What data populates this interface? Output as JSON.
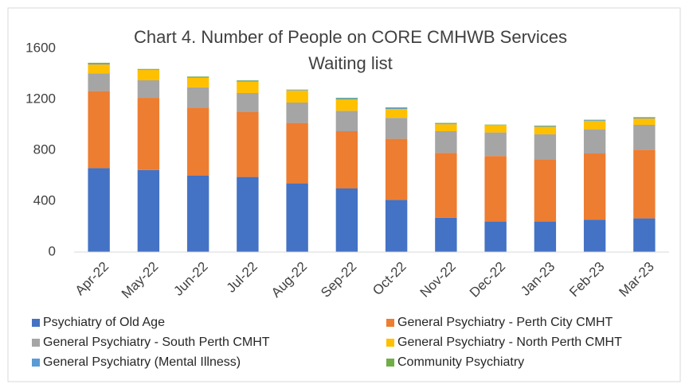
{
  "chart_data": {
    "type": "stacked_bar",
    "title_lines": [
      "Chart 4. Number of People on CORE CMHWB Services",
      "Waiting list"
    ],
    "categories": [
      "Apr-22",
      "May-22",
      "Jun-22",
      "Jul-22",
      "Aug-22",
      "Sep-22",
      "Oct-22",
      "Nov-22",
      "Dec-22",
      "Jan-23",
      "Feb-23",
      "Mar-23"
    ],
    "series": [
      {
        "name": "Psychiatry of Old Age",
        "color": "#4472c4",
        "values": [
          660,
          645,
          600,
          590,
          540,
          500,
          410,
          270,
          240,
          240,
          255,
          265
        ]
      },
      {
        "name": "General Psychiatry - Perth City CMHT",
        "color": "#ed7d31",
        "values": [
          605,
          567,
          535,
          510,
          475,
          450,
          480,
          510,
          515,
          490,
          520,
          540
        ]
      },
      {
        "name": "General Psychiatry - South Perth CMHT",
        "color": "#a5a5a5",
        "values": [
          140,
          138,
          160,
          150,
          160,
          160,
          165,
          170,
          185,
          195,
          190,
          195
        ]
      },
      {
        "name": "General Psychiatry - North Perth CMHT",
        "color": "#ffc000",
        "values": [
          70,
          81,
          75,
          90,
          95,
          90,
          70,
          55,
          58,
          60,
          65,
          50
        ]
      },
      {
        "name": "General Psychiatry (Mental Illness)",
        "color": "#5b9bd5",
        "values": [
          8,
          5,
          6,
          6,
          4,
          8,
          8,
          6,
          2,
          5,
          6,
          6
        ]
      },
      {
        "name": "Community Psychiatry",
        "color": "#70ad47",
        "values": [
          5,
          3,
          4,
          4,
          3,
          5,
          5,
          4,
          2,
          4,
          4,
          4
        ]
      }
    ],
    "ylim": [
      0,
      1600
    ],
    "yticks": [
      0,
      400,
      800,
      1200,
      1600
    ],
    "grid": false
  }
}
